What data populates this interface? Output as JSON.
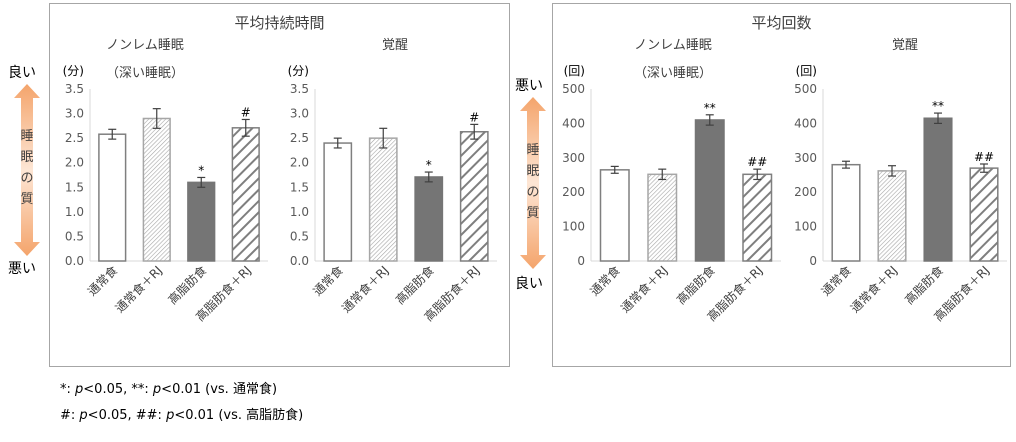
{
  "panels": [
    {
      "title": "平均持続時間"
    },
    {
      "title": "平均回数"
    }
  ],
  "scale_labels": {
    "left": {
      "top": "良い",
      "bottom": "悪い",
      "arrow_text": [
        "睡",
        "眠",
        "の",
        "質"
      ]
    },
    "right": {
      "top": "悪い",
      "bottom": "良い",
      "arrow_text": [
        "睡",
        "眠",
        "の",
        "質"
      ]
    }
  },
  "footnotes": {
    "line1": {
      "sym": "*: ",
      "p1": "p",
      "v1": "<0.05, **: ",
      "p2": "p",
      "v2": "<0.01 (vs. 通常食)"
    },
    "line2": {
      "sym": "#: ",
      "p1": "p",
      "v1": "<0.05, ##: ",
      "p2": "p",
      "v2": "<0.01 (vs. 高脂肪食)"
    }
  },
  "colors": {
    "dark_bar": "#757575",
    "outline": "#7f7f7f",
    "axis": "#d9d9d9",
    "arrow": "#f4a46b"
  },
  "chart_data": [
    {
      "type": "bar",
      "title": "ノンレム睡眠",
      "subtitle": "（深い睡眠）",
      "ylabel": "(分)",
      "ylim": [
        0,
        3.5
      ],
      "yticks": [
        "0.0",
        "0.5",
        "1.0",
        "1.5",
        "2.0",
        "2.5",
        "3.0",
        "3.5"
      ],
      "categories": [
        "通常食",
        "通常食＋RJ",
        "高脂肪食",
        "高脂肪食＋RJ"
      ],
      "values": [
        2.58,
        2.9,
        1.6,
        2.71
      ],
      "errors": [
        0.1,
        0.2,
        0.1,
        0.17
      ],
      "marks": [
        "",
        "",
        "*",
        "#"
      ]
    },
    {
      "type": "bar",
      "title": "覚醒",
      "subtitle": "",
      "ylabel": "(分)",
      "ylim": [
        0,
        3.5
      ],
      "yticks": [
        "0.0",
        "0.5",
        "1.0",
        "1.5",
        "2.0",
        "2.5",
        "3.0",
        "3.5"
      ],
      "categories": [
        "通常食",
        "通常食＋RJ",
        "高脂肪食",
        "高脂肪食＋RJ"
      ],
      "values": [
        2.4,
        2.5,
        1.71,
        2.63
      ],
      "errors": [
        0.1,
        0.2,
        0.1,
        0.15
      ],
      "marks": [
        "",
        "",
        "*",
        "#"
      ]
    },
    {
      "type": "bar",
      "title": "ノンレム睡眠",
      "subtitle": "（深い睡眠）",
      "ylabel": "(回)",
      "ylim": [
        0,
        500
      ],
      "yticks": [
        "0",
        "100",
        "200",
        "300",
        "400",
        "500"
      ],
      "categories": [
        "通常食",
        "通常食＋RJ",
        "高脂肪食",
        "高脂肪食＋RJ"
      ],
      "values": [
        265,
        252,
        410,
        252
      ],
      "errors": [
        10,
        15,
        15,
        15
      ],
      "marks": [
        "",
        "",
        "**",
        "##"
      ]
    },
    {
      "type": "bar",
      "title": "覚醒",
      "subtitle": "",
      "ylabel": "(回)",
      "ylim": [
        0,
        500
      ],
      "yticks": [
        "0",
        "100",
        "200",
        "300",
        "400",
        "500"
      ],
      "categories": [
        "通常食",
        "通常食＋RJ",
        "高脂肪食",
        "高脂肪食＋RJ"
      ],
      "values": [
        280,
        262,
        415,
        270
      ],
      "errors": [
        10,
        15,
        15,
        12
      ],
      "marks": [
        "",
        "",
        "**",
        "##"
      ]
    }
  ]
}
